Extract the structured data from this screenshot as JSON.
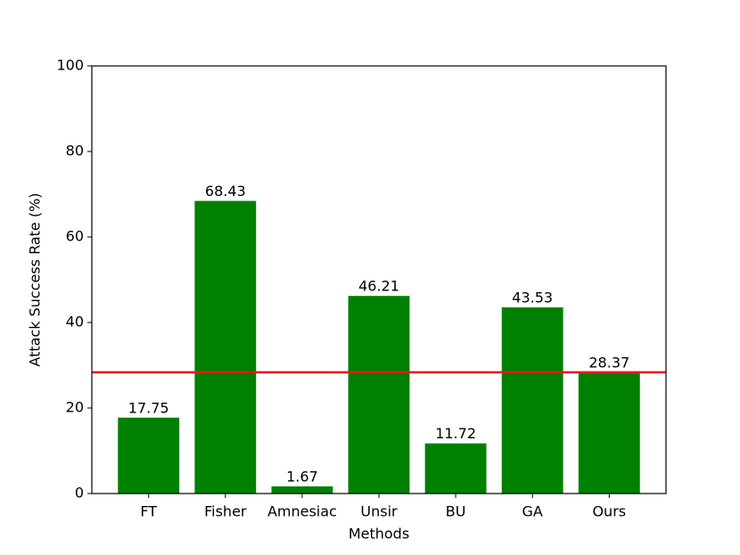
{
  "chart_data": {
    "type": "bar",
    "x_label": "Methods",
    "y_label": "Attack Success Rate (%)",
    "categories": [
      "FT",
      "Fisher",
      "Amnesiac",
      "Unsir",
      "BU",
      "GA",
      "Ours"
    ],
    "values": [
      17.75,
      68.43,
      1.67,
      46.21,
      11.72,
      43.53,
      28.37
    ],
    "color": "#008000",
    "ylim": [
      0,
      100
    ],
    "yticks": [
      0,
      20,
      40,
      60,
      80,
      100
    ],
    "reference_line": 28.37,
    "reference_color": "#e41a1c"
  }
}
